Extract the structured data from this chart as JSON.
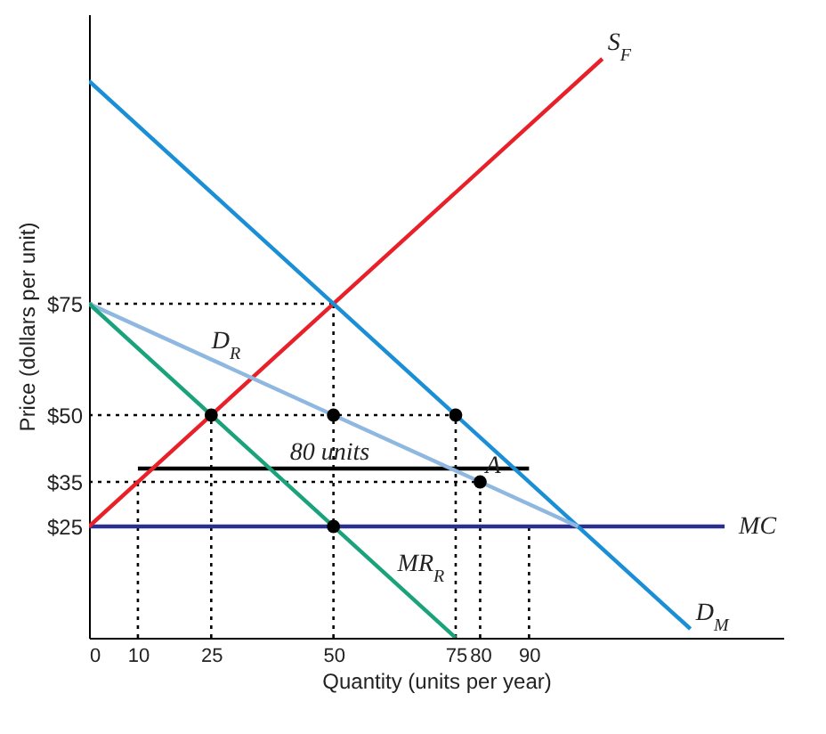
{
  "chart_data": {
    "type": "line",
    "xlabel": "Quantity (units per year)",
    "ylabel": "Price (dollars per unit)",
    "xlim": [
      0,
      142
    ],
    "ylim": [
      0,
      140
    ],
    "xticks": [
      0,
      10,
      25,
      50,
      75,
      80,
      90
    ],
    "yticks": [
      {
        "value": 25,
        "label": "$25"
      },
      {
        "value": 35,
        "label": "$35"
      },
      {
        "value": 50,
        "label": "$50"
      },
      {
        "value": 75,
        "label": "$75"
      }
    ],
    "grid": false,
    "series": [
      {
        "type": "line",
        "color": "#000000",
        "line_style": "dotted",
        "x": [
          0,
          50
        ],
        "values": [
          75,
          75
        ]
      },
      {
        "type": "line",
        "color": "#000000",
        "line_style": "dotted",
        "x": [
          50,
          50
        ],
        "values": [
          0,
          75
        ]
      },
      {
        "type": "line",
        "color": "#000000",
        "line_style": "dotted",
        "x": [
          0,
          75
        ],
        "values": [
          50,
          50
        ]
      },
      {
        "type": "line",
        "color": "#000000",
        "line_style": "dotted",
        "x": [
          75,
          75
        ],
        "values": [
          0,
          50
        ]
      },
      {
        "type": "line",
        "color": "#000000",
        "line_style": "dotted",
        "x": [
          0,
          80
        ],
        "values": [
          35,
          35
        ]
      },
      {
        "type": "line",
        "color": "#000000",
        "line_style": "dotted",
        "x": [
          80,
          80
        ],
        "values": [
          0,
          35
        ]
      },
      {
        "type": "line",
        "color": "#000000",
        "line_style": "dotted",
        "x": [
          25,
          25
        ],
        "values": [
          0,
          50
        ]
      },
      {
        "type": "line",
        "color": "#000000",
        "line_style": "dotted",
        "x": [
          10,
          10
        ],
        "values": [
          0,
          35
        ]
      },
      {
        "type": "line",
        "color": "#000000",
        "line_style": "dotted",
        "x": [
          90,
          90
        ],
        "values": [
          0,
          25
        ]
      },
      {
        "type": "line",
        "color": "#000000",
        "line_style": "solid",
        "x": [
          10,
          90
        ],
        "values": [
          38,
          38
        ]
      },
      {
        "name": "MC",
        "color": "#2b2f8f",
        "line_style": "solid",
        "x": [
          0,
          130
        ],
        "values": [
          25,
          25
        ]
      },
      {
        "color": "#e8202a",
        "line_style": "solid",
        "x": [
          0,
          105
        ],
        "values": [
          25,
          130
        ]
      },
      {
        "color": "#1a8fd6",
        "line_style": "solid",
        "x": [
          0,
          123
        ],
        "values": [
          125,
          2
        ]
      },
      {
        "color": "#8fb8e0",
        "line_style": "solid",
        "x": [
          0,
          100
        ],
        "values": [
          75,
          25
        ]
      },
      {
        "color": "#1aa37a",
        "line_style": "solid",
        "x": [
          0,
          75
        ],
        "values": [
          75,
          0
        ]
      },
      {
        "type": "scatter",
        "color": "#000000",
        "marker": "circle",
        "x": [
          25,
          50,
          75,
          80,
          50
        ],
        "values": [
          50,
          50,
          50,
          35,
          25
        ]
      }
    ],
    "annotations": [
      {
        "text": "S$_{F}$",
        "x": 105,
        "y": 130
      },
      {
        "text": "D$_{R}$",
        "x": 24,
        "y": 63
      },
      {
        "text": "MR$_{R}$",
        "x": 62,
        "y": 13
      },
      {
        "text": "D$_{M}$",
        "x": 123,
        "y": 2
      },
      {
        "text": "A",
        "x": 80,
        "y": 35
      },
      {
        "text": "80 units",
        "x": 40,
        "y": 38
      }
    ]
  }
}
